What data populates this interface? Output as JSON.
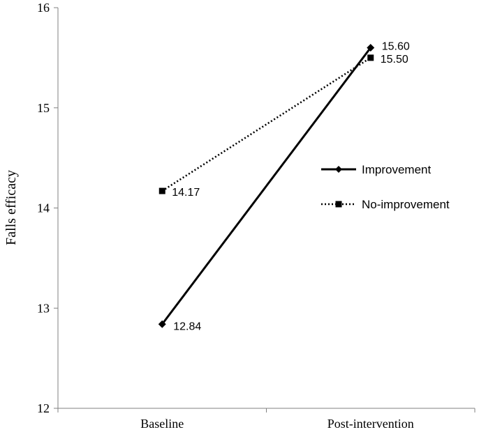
{
  "chart_data": {
    "type": "line",
    "title": "",
    "xlabel": "",
    "ylabel": "Falls efficacy",
    "categories": [
      "Baseline",
      "Post-intervention"
    ],
    "ylim": [
      12,
      16
    ],
    "yticks": [
      "12",
      "13",
      "14",
      "15",
      "16"
    ],
    "grid": false,
    "legend_position": "right",
    "series": [
      {
        "name": "Improvement",
        "values": [
          12.84,
          15.6
        ],
        "labels": [
          "12.84",
          "15.60"
        ],
        "line_style": "solid",
        "marker": "diamond",
        "color": "#000000"
      },
      {
        "name": "No-improvement",
        "values": [
          14.17,
          15.5
        ],
        "labels": [
          "14.17",
          "15.50"
        ],
        "line_style": "dotted",
        "marker": "square",
        "color": "#000000"
      }
    ]
  }
}
